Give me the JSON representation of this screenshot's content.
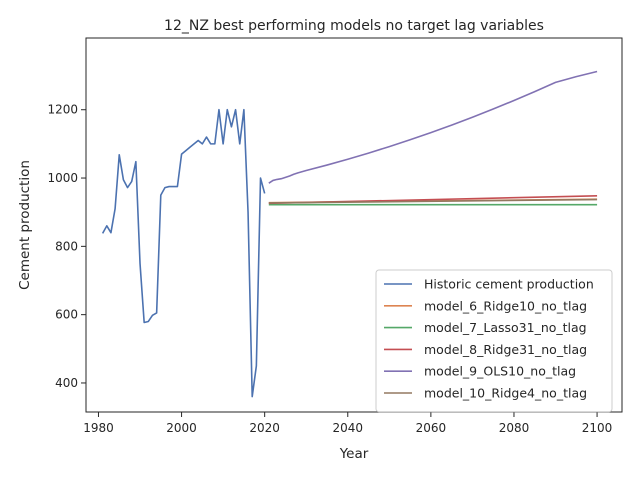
{
  "chart_data": {
    "type": "line",
    "title": "12_NZ best performing models no target lag variables",
    "xlabel": "Year",
    "ylabel": "Cement production",
    "xlim": [
      1977,
      2106
    ],
    "ylim": [
      315,
      1410
    ],
    "xticks": [
      1980,
      2000,
      2020,
      2040,
      2060,
      2080,
      2100
    ],
    "yticks": [
      400,
      600,
      800,
      1000,
      1200
    ],
    "grid": false,
    "legend_position": "lower right",
    "series": [
      {
        "name": "Historic cement production",
        "color": "#4c72b0",
        "x": [
          1981,
          1982,
          1983,
          1984,
          1985,
          1986,
          1987,
          1988,
          1989,
          1990,
          1991,
          1992,
          1993,
          1994,
          1995,
          1996,
          1997,
          1998,
          1999,
          2000,
          2001,
          2002,
          2003,
          2004,
          2005,
          2006,
          2007,
          2008,
          2009,
          2010,
          2011,
          2012,
          2013,
          2014,
          2015,
          2016,
          2017,
          2018,
          2019,
          2020
        ],
        "y": [
          838,
          860,
          840,
          910,
          1068,
          995,
          972,
          990,
          1048,
          750,
          577,
          580,
          598,
          605,
          950,
          972,
          975,
          975,
          975,
          1070,
          1080,
          1090,
          1100,
          1110,
          1100,
          1120,
          1100,
          1100,
          1200,
          1100,
          1200,
          1150,
          1200,
          1100,
          1200,
          900,
          360,
          450,
          1000,
          955
        ]
      },
      {
        "name": "model_6_Ridge10_no_tlag",
        "color": "#dd8452",
        "x": [
          2021,
          2100
        ],
        "y": [
          928,
          938
        ]
      },
      {
        "name": "model_7_Lasso31_no_tlag",
        "color": "#55a868",
        "x": [
          2021,
          2100
        ],
        "y": [
          922,
          922
        ]
      },
      {
        "name": "model_8_Ridge31_no_tlag",
        "color": "#c44e52",
        "x": [
          2021,
          2100
        ],
        "y": [
          926,
          948
        ]
      },
      {
        "name": "model_9_OLS10_no_tlag",
        "color": "#8172b3",
        "x": [
          2021,
          2022,
          2023,
          2024,
          2025,
          2026,
          2027,
          2028,
          2030,
          2035,
          2040,
          2045,
          2050,
          2055,
          2060,
          2065,
          2070,
          2075,
          2080,
          2085,
          2090,
          2095,
          2100
        ],
        "y": [
          985,
          993,
          996,
          998,
          1002,
          1006,
          1011,
          1015,
          1022,
          1038,
          1055,
          1073,
          1092,
          1112,
          1133,
          1155,
          1178,
          1202,
          1227,
          1253,
          1280,
          1297,
          1312
        ]
      },
      {
        "name": "model_10_Ridge4_no_tlag",
        "color": "#937860",
        "x": [
          2021,
          2100
        ],
        "y": [
          927,
          937
        ]
      }
    ]
  }
}
